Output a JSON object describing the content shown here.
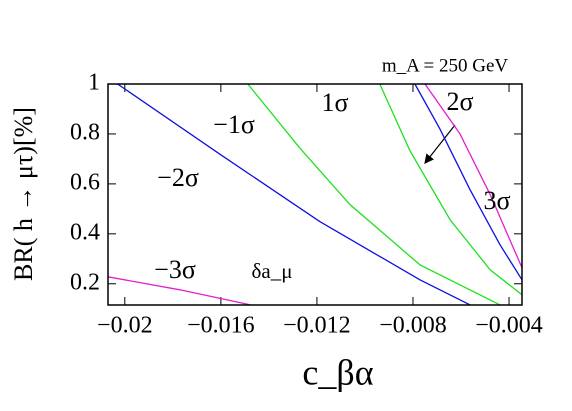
{
  "chart_data": {
    "type": "line",
    "annotation": "m_A = 250 GeV",
    "x_label": "c_βα",
    "y_label": "BR( h → μτ)[%]",
    "extra_label": "δa_μ",
    "xlim": [
      -0.0207,
      -0.00346
    ],
    "ylim": [
      0.115,
      1.0
    ],
    "xticks": [
      {
        "value": -0.02,
        "label": "−0.02"
      },
      {
        "value": -0.016,
        "label": "−0.016"
      },
      {
        "value": -0.012,
        "label": "−0.012"
      },
      {
        "value": -0.008,
        "label": "−0.008"
      },
      {
        "value": -0.004,
        "label": "−0.004"
      }
    ],
    "yticks": [
      0.2,
      0.4,
      0.6,
      0.8,
      1
    ],
    "series": [
      {
        "name": "−3σ",
        "color": "#e020d0",
        "x": [
          -0.0207,
          -0.01771,
          -0.01479
        ],
        "values": [
          0.228,
          0.176,
          0.116
        ]
      },
      {
        "name": "−2σ",
        "color": "#1010e0",
        "x": [
          -0.0203,
          -0.01604,
          -0.01188,
          -0.00771,
          -0.00563
        ],
        "values": [
          1.0,
          0.719,
          0.449,
          0.216,
          0.116
        ]
      },
      {
        "name": "−1σ",
        "color": "#20e020",
        "x": [
          -0.01488,
          -0.01271,
          -0.01063,
          -0.00771,
          -0.00438
        ],
        "values": [
          1.0,
          0.743,
          0.518,
          0.276,
          0.116
        ]
      },
      {
        "name": "1σ",
        "color": "#20e020",
        "x": [
          -0.00938,
          -0.00813,
          -0.00646,
          -0.00479,
          -0.00346
        ],
        "values": [
          1.0,
          0.733,
          0.457,
          0.256,
          0.156
        ]
      },
      {
        "name": "2σ",
        "color": "#1010e0",
        "x": [
          -0.00792,
          -0.00688,
          -0.00563,
          -0.00438,
          -0.00346
        ],
        "values": [
          1.0,
          0.82,
          0.578,
          0.357,
          0.216
        ]
      },
      {
        "name": "3σ",
        "color": "#e020d0",
        "x": [
          -0.0075,
          -0.00604,
          -0.00479,
          -0.00346
        ],
        "values": [
          1.0,
          0.8,
          0.558,
          0.264
        ]
      }
    ]
  }
}
